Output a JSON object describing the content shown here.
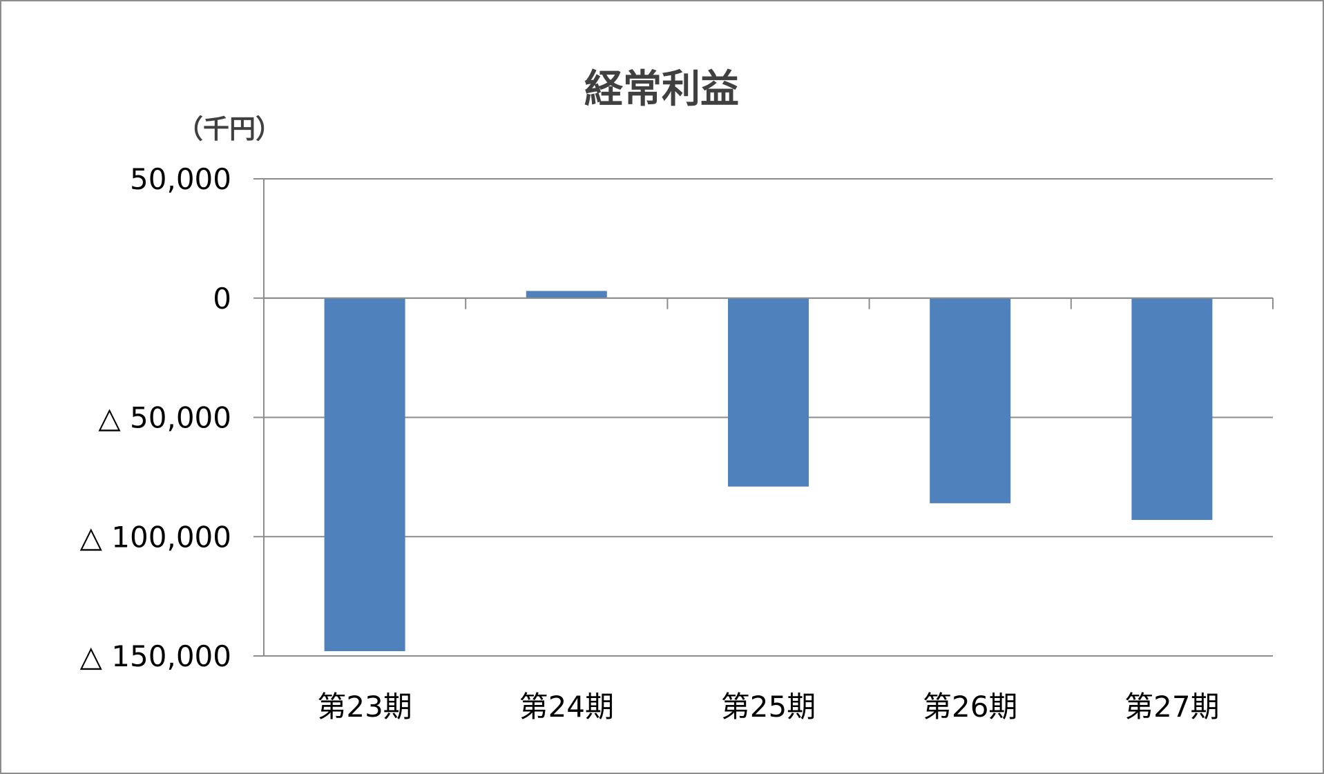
{
  "chart_data": {
    "type": "bar",
    "title": "経常利益",
    "unit_label": "（千円）",
    "categories": [
      "第23期",
      "第24期",
      "第25期",
      "第26期",
      "第27期"
    ],
    "values": [
      -148000,
      3000,
      -79000,
      -86000,
      -93000
    ],
    "ylim": [
      -150000,
      50000
    ],
    "yticks": [
      50000,
      0,
      -50000,
      -100000,
      -150000
    ],
    "ytick_labels": [
      "50,000",
      "0",
      "△ 50,000",
      "△ 100,000",
      "△ 150,000"
    ],
    "grid": true,
    "legend": "none",
    "bar_color": "#4f81bd",
    "grid_color": "#8c8c8c"
  }
}
